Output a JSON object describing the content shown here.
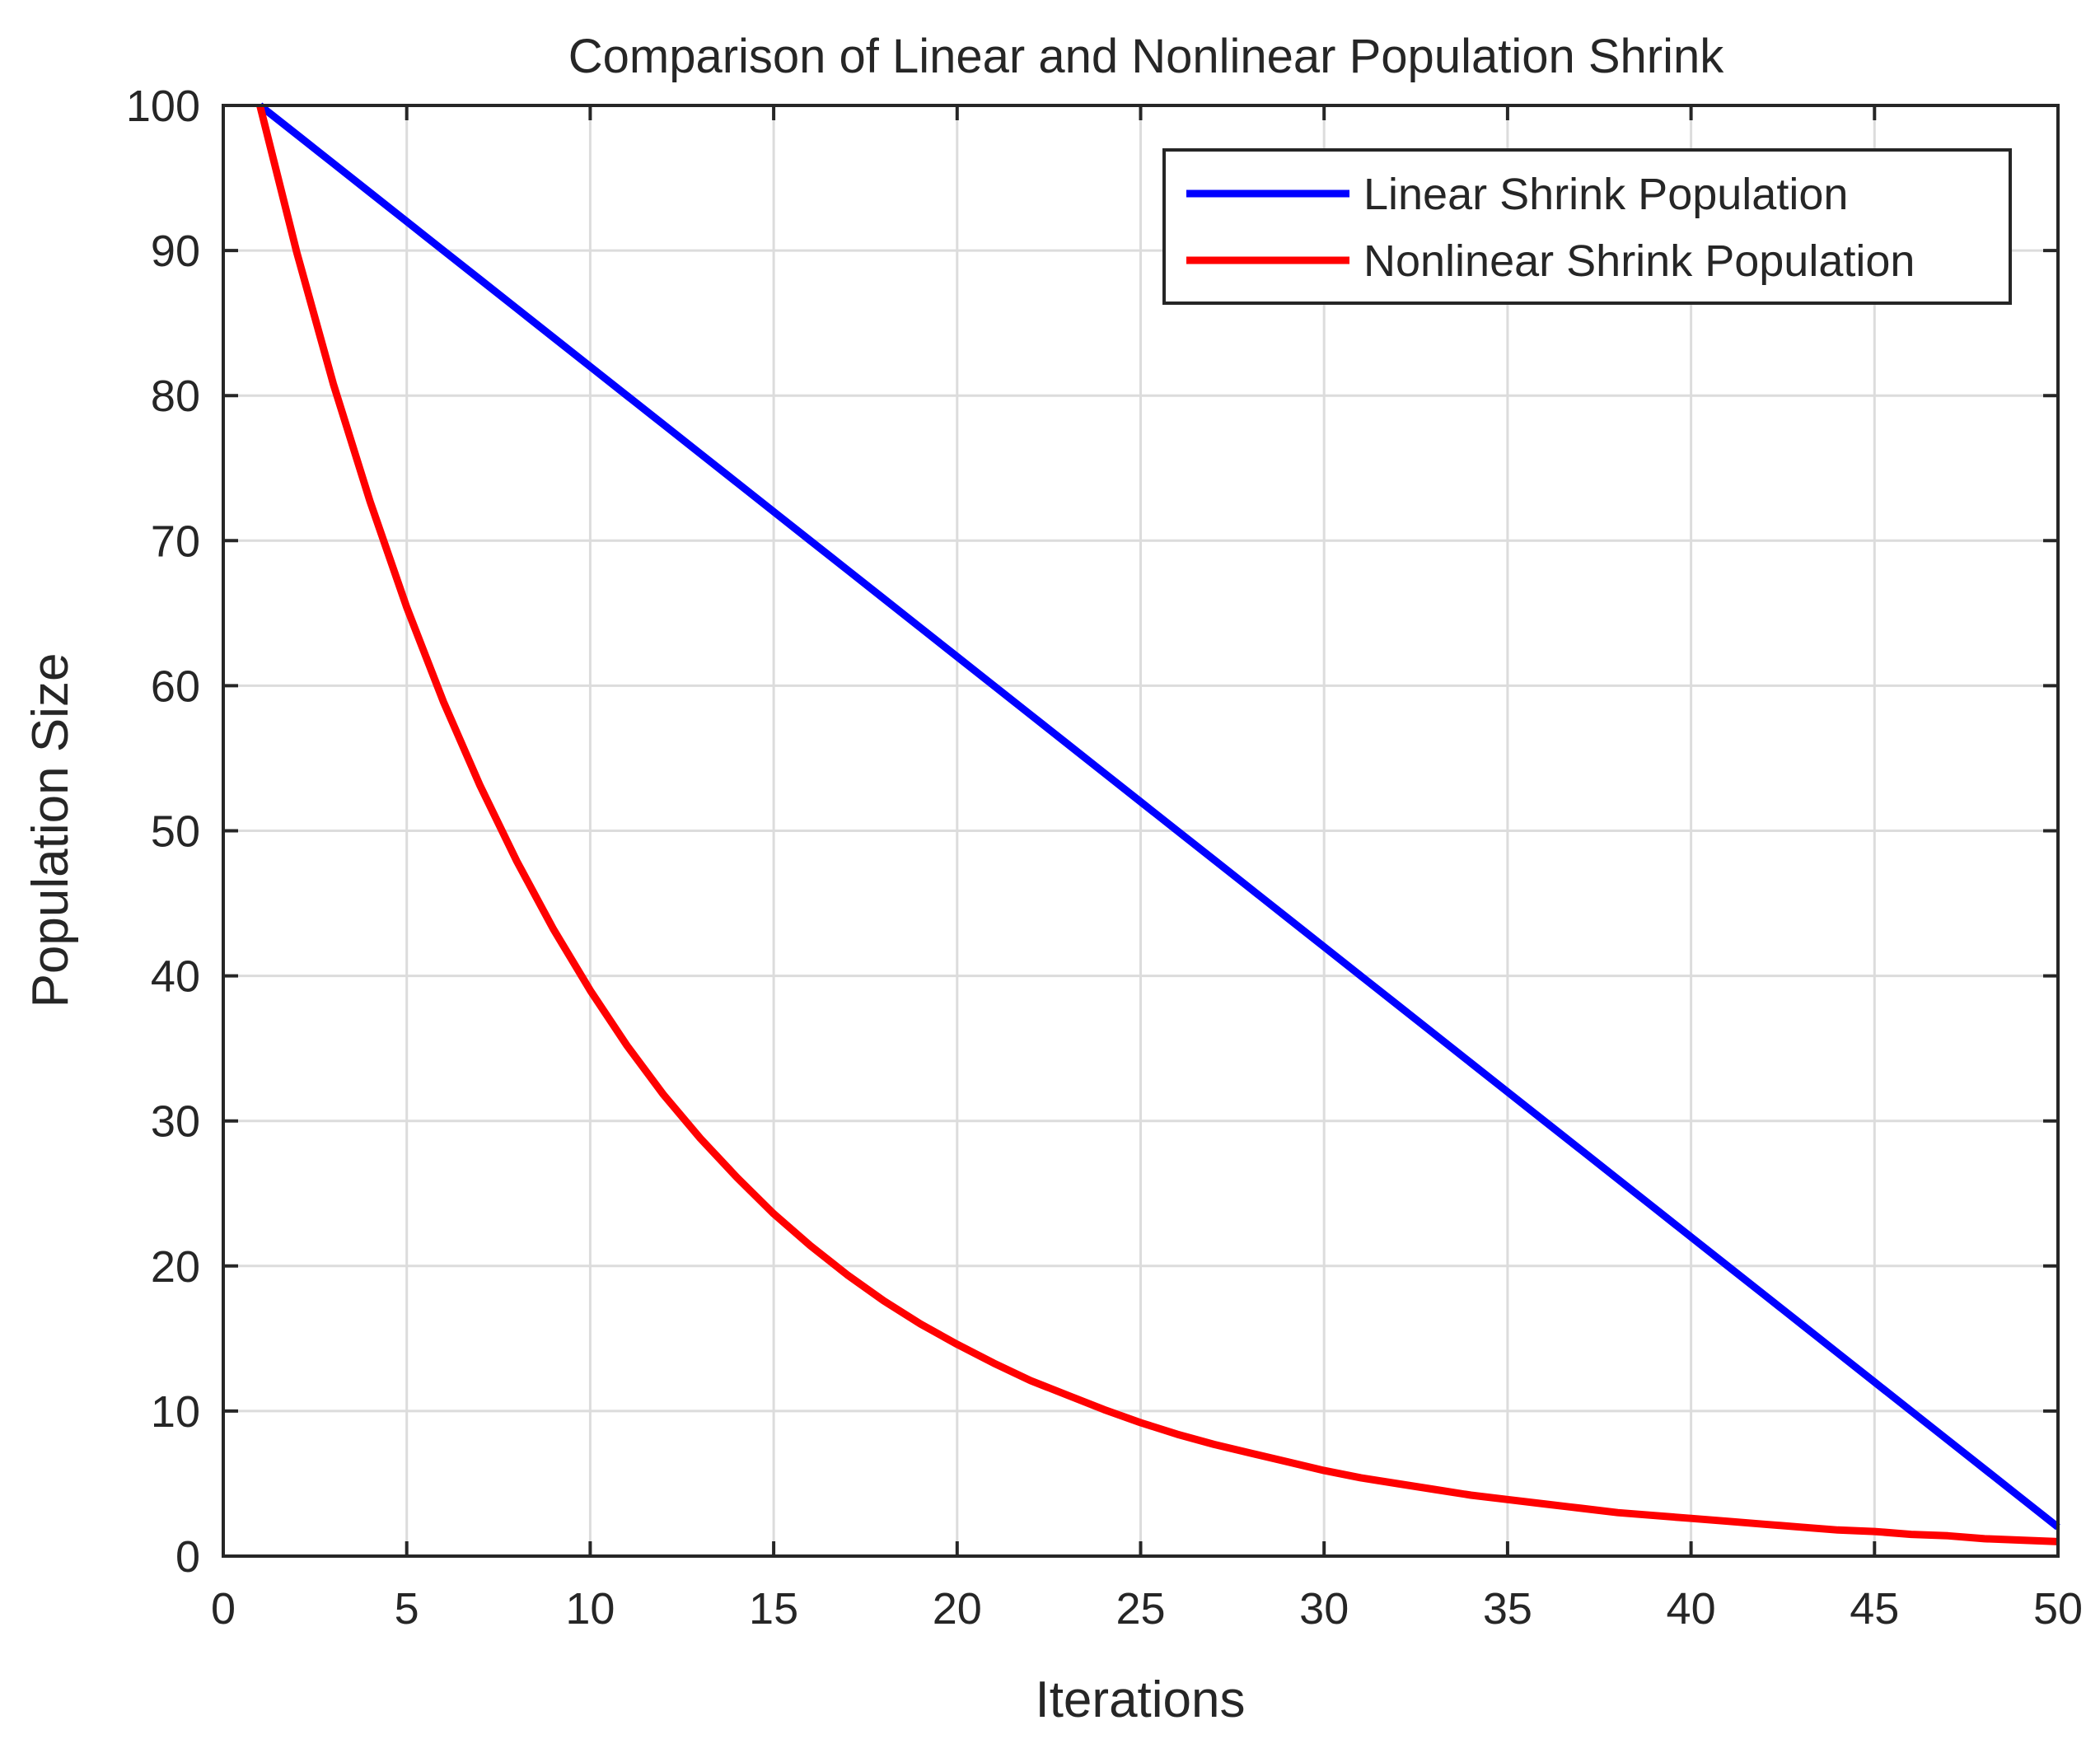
{
  "chart_data": {
    "type": "line",
    "title": "Comparison of Linear and Nonlinear Population Shrink",
    "xlabel": "Iterations",
    "ylabel": "Population Size",
    "xlim": [
      0,
      50
    ],
    "ylim": [
      0,
      100
    ],
    "xticks": [
      0,
      5,
      10,
      15,
      20,
      25,
      30,
      35,
      40,
      45,
      50
    ],
    "yticks": [
      0,
      10,
      20,
      30,
      40,
      50,
      60,
      70,
      80,
      90,
      100
    ],
    "grid": true,
    "legend_position": "top-right",
    "x": [
      1,
      2,
      3,
      4,
      5,
      6,
      7,
      8,
      9,
      10,
      11,
      12,
      13,
      14,
      15,
      16,
      17,
      18,
      19,
      20,
      21,
      22,
      23,
      24,
      25,
      26,
      27,
      28,
      29,
      30,
      31,
      32,
      33,
      34,
      35,
      36,
      37,
      38,
      39,
      40,
      41,
      42,
      43,
      44,
      45,
      46,
      47,
      48,
      49,
      50
    ],
    "series": [
      {
        "name": "Linear Shrink Population",
        "color": "#0000ff",
        "values": [
          100,
          98,
          96,
          94,
          92,
          90,
          88,
          86,
          84,
          82,
          80,
          78,
          76,
          74,
          72,
          70,
          68,
          66,
          64,
          62,
          60,
          58,
          56,
          54,
          52,
          50,
          48,
          46,
          44,
          42,
          40,
          38,
          36,
          34,
          32,
          30,
          28,
          26,
          24,
          22,
          20,
          18,
          16,
          14,
          12,
          10,
          8,
          6,
          4,
          2
        ]
      },
      {
        "name": "Nonlinear Shrink Population",
        "color": "#ff0000",
        "values": [
          100,
          89.9,
          80.8,
          72.7,
          65.4,
          58.9,
          53.1,
          47.9,
          43.2,
          39.0,
          35.2,
          31.8,
          28.8,
          26.1,
          23.6,
          21.4,
          19.4,
          17.6,
          16.0,
          14.6,
          13.3,
          12.1,
          11.1,
          10.1,
          9.2,
          8.4,
          7.7,
          7.1,
          6.5,
          5.9,
          5.4,
          5.0,
          4.6,
          4.2,
          3.9,
          3.6,
          3.3,
          3.0,
          2.8,
          2.6,
          2.4,
          2.2,
          2.0,
          1.8,
          1.7,
          1.5,
          1.4,
          1.2,
          1.1,
          1.0
        ]
      }
    ]
  }
}
